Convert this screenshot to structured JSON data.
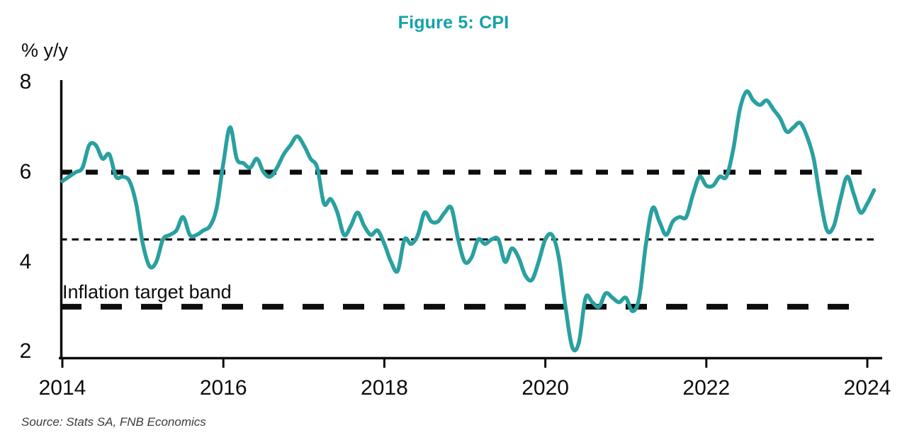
{
  "title": "Figure 5: CPI",
  "ylabel_display": "% y/y",
  "annotation": "Inflation target band",
  "source": "Source: Stats SA,  FNB Economics",
  "colors": {
    "title": "#14A2A8",
    "line": "#2AA0A0",
    "band_lines": "#0C0C0C",
    "axis": "#0C0C0C",
    "source_text": "#3C3C3C"
  },
  "chart_data": {
    "type": "line",
    "title": "Figure 5: CPI",
    "ylabel": "% y/y",
    "frequency": "monthly",
    "x_start": "2014-01",
    "x_end": "2024-02",
    "xlim": [
      2014,
      2024.25
    ],
    "ylim": [
      2,
      8
    ],
    "y_ticks": [
      8,
      6,
      4,
      2
    ],
    "x_ticks": [
      2014,
      2016,
      2018,
      2020,
      2022,
      2024
    ],
    "grid": false,
    "legend": "none",
    "target_band": {
      "lower": 3,
      "midpoint": 4.5,
      "upper": 6,
      "label": "Inflation target band"
    },
    "series": [
      {
        "name": "CPI (% y/y)",
        "values": [
          5.8,
          5.9,
          6.0,
          6.1,
          6.6,
          6.6,
          6.3,
          6.4,
          5.9,
          5.9,
          5.8,
          5.3,
          4.4,
          3.9,
          4.0,
          4.5,
          4.6,
          4.7,
          5.0,
          4.6,
          4.6,
          4.7,
          4.8,
          5.2,
          6.2,
          7.0,
          6.3,
          6.2,
          6.1,
          6.3,
          6.0,
          5.9,
          6.1,
          6.4,
          6.6,
          6.8,
          6.6,
          6.3,
          6.1,
          5.3,
          5.4,
          5.1,
          4.6,
          4.8,
          5.1,
          4.8,
          4.6,
          4.7,
          4.4,
          4.0,
          3.8,
          4.5,
          4.4,
          4.6,
          5.1,
          4.9,
          4.9,
          5.1,
          5.2,
          4.5,
          4.0,
          4.1,
          4.5,
          4.4,
          4.5,
          4.5,
          4.0,
          4.3,
          4.1,
          3.7,
          3.6,
          4.0,
          4.5,
          4.6,
          4.1,
          3.0,
          2.1,
          2.2,
          3.2,
          3.1,
          3.0,
          3.3,
          3.2,
          3.1,
          3.2,
          2.9,
          3.2,
          4.4,
          5.2,
          4.9,
          4.6,
          4.9,
          5.0,
          5.0,
          5.5,
          5.9,
          5.7,
          5.7,
          5.9,
          5.9,
          6.5,
          7.4,
          7.8,
          7.6,
          7.5,
          7.6,
          7.4,
          7.2,
          6.9,
          7.0,
          7.1,
          6.8,
          6.3,
          5.4,
          4.7,
          4.8,
          5.4,
          5.9,
          5.5,
          5.1,
          5.3,
          5.6
        ]
      }
    ]
  }
}
